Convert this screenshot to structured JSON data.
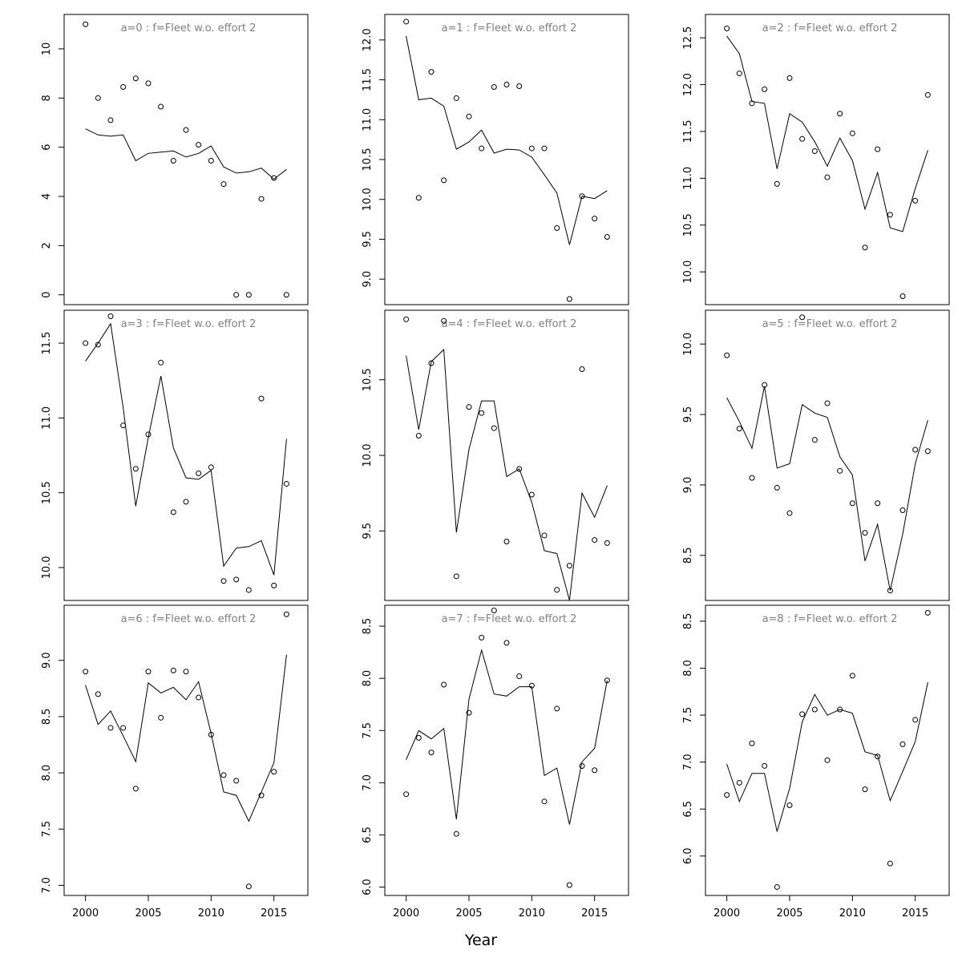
{
  "figure": {
    "xlabel": "Year",
    "colors": {
      "axis": "#000000",
      "panel_title": "#808080",
      "line": "#000000",
      "points": "#000000"
    }
  },
  "chart_data": [
    {
      "type": "line",
      "title": "a=0  :  f=Fleet w.o. effort 2",
      "xlabel": "Year",
      "ylabel": "",
      "xlim": [
        1998.3,
        2017.7
      ],
      "ylim": [
        -0.4,
        11.4
      ],
      "xticks": [
        "2000",
        "2005",
        "2010",
        "2015"
      ],
      "yticks": [
        "0",
        "2",
        "4",
        "6",
        "8",
        "10"
      ],
      "series": [
        {
          "style": "points",
          "x": [
            2000,
            2001,
            2002,
            2003,
            2004,
            2005,
            2006,
            2007,
            2008,
            2009,
            2010,
            2011,
            2012,
            2013,
            2014,
            2015,
            2016
          ],
          "values": [
            11.0,
            8.0,
            7.1,
            8.45,
            8.8,
            8.6,
            7.65,
            5.45,
            6.7,
            6.1,
            5.45,
            4.5,
            0.0,
            0.0,
            3.9,
            4.75,
            0.0
          ]
        },
        {
          "style": "line",
          "x": [
            2000,
            2001,
            2002,
            2003,
            2004,
            2005,
            2006,
            2007,
            2008,
            2009,
            2010,
            2011,
            2012,
            2013,
            2014,
            2015,
            2016
          ],
          "values": [
            6.75,
            6.5,
            6.45,
            6.5,
            5.45,
            5.75,
            5.8,
            5.85,
            5.6,
            5.75,
            6.05,
            5.2,
            4.95,
            5.0,
            5.15,
            4.7,
            5.1
          ]
        }
      ]
    },
    {
      "type": "line",
      "title": "a=3  :  f=Fleet w.o. effort 2",
      "xlabel": "Year",
      "ylabel": "",
      "xlim": [
        1998.3,
        2017.7
      ],
      "ylim": [
        9.78,
        11.72
      ],
      "xticks": [
        "2000",
        "2005",
        "2010",
        "2015"
      ],
      "yticks": [
        "10.0",
        "10.5",
        "11.0",
        "11.5"
      ],
      "series": [
        {
          "style": "points",
          "x": [
            2000,
            2001,
            2002,
            2003,
            2004,
            2005,
            2006,
            2007,
            2008,
            2009,
            2010,
            2011,
            2012,
            2013,
            2014,
            2015,
            2016
          ],
          "values": [
            11.5,
            11.49,
            11.68,
            10.95,
            10.66,
            10.89,
            11.37,
            10.37,
            10.44,
            10.63,
            10.67,
            9.91,
            9.92,
            9.85,
            11.13,
            9.88,
            10.56
          ]
        },
        {
          "style": "line",
          "x": [
            2000,
            2001,
            2002,
            2003,
            2004,
            2005,
            2006,
            2007,
            2008,
            2009,
            2010,
            2011,
            2012,
            2013,
            2014,
            2015,
            2016
          ],
          "values": [
            11.38,
            11.5,
            11.63,
            11.07,
            10.41,
            10.87,
            11.28,
            10.8,
            10.6,
            10.59,
            10.65,
            10.01,
            10.13,
            10.14,
            10.18,
            9.95,
            10.86
          ]
        }
      ]
    },
    {
      "type": "line",
      "title": "a=6  :  f=Fleet w.o. effort 2",
      "xlabel": "Year",
      "ylabel": "",
      "xlim": [
        1998.3,
        2017.7
      ],
      "ylim": [
        6.91,
        9.49
      ],
      "xticks": [
        "2000",
        "2005",
        "2010",
        "2015"
      ],
      "yticks": [
        "7.0",
        "7.5",
        "8.0",
        "8.5",
        "9.0"
      ],
      "series": [
        {
          "style": "points",
          "x": [
            2000,
            2001,
            2002,
            2003,
            2004,
            2005,
            2006,
            2007,
            2008,
            2009,
            2010,
            2011,
            2012,
            2013,
            2014,
            2015,
            2016
          ],
          "values": [
            8.9,
            8.7,
            8.4,
            8.4,
            7.86,
            8.9,
            8.49,
            8.91,
            8.9,
            8.67,
            8.34,
            7.98,
            7.93,
            6.99,
            7.8,
            8.01,
            9.41
          ]
        },
        {
          "style": "line",
          "x": [
            2000,
            2001,
            2002,
            2003,
            2004,
            2005,
            2006,
            2007,
            2008,
            2009,
            2010,
            2011,
            2012,
            2013,
            2014,
            2015,
            2016
          ],
          "values": [
            8.78,
            8.43,
            8.55,
            8.33,
            8.1,
            8.8,
            8.71,
            8.76,
            8.65,
            8.81,
            8.35,
            7.83,
            7.8,
            7.57,
            7.83,
            8.09,
            9.05
          ]
        }
      ]
    },
    {
      "type": "line",
      "title": "a=1  :  f=Fleet w.o. effort 2",
      "xlabel": "Year",
      "ylabel": "",
      "xlim": [
        1998.3,
        2017.7
      ],
      "ylim": [
        8.68,
        12.32
      ],
      "xticks": [
        "2000",
        "2005",
        "2010",
        "2015"
      ],
      "yticks": [
        "9.0",
        "9.5",
        "10.0",
        "10.5",
        "11.0",
        "11.5",
        "12.0"
      ],
      "series": [
        {
          "style": "points",
          "x": [
            2000,
            2001,
            2002,
            2003,
            2004,
            2005,
            2006,
            2007,
            2008,
            2009,
            2010,
            2011,
            2012,
            2013,
            2014,
            2015,
            2016
          ],
          "values": [
            12.23,
            10.02,
            11.6,
            10.24,
            11.27,
            11.04,
            10.64,
            11.41,
            11.44,
            11.42,
            10.64,
            10.64,
            9.64,
            8.75,
            10.04,
            9.76,
            9.53
          ]
        },
        {
          "style": "line",
          "x": [
            2000,
            2001,
            2002,
            2003,
            2004,
            2005,
            2006,
            2007,
            2008,
            2009,
            2010,
            2011,
            2012,
            2013,
            2014,
            2015,
            2016
          ],
          "values": [
            12.05,
            11.25,
            11.27,
            11.17,
            10.63,
            10.72,
            10.87,
            10.58,
            10.63,
            10.62,
            10.53,
            10.31,
            10.08,
            9.43,
            10.04,
            10.01,
            10.11
          ]
        }
      ]
    },
    {
      "type": "line",
      "title": "a=4  :  f=Fleet w.o. effort 2",
      "xlabel": "Year",
      "ylabel": "",
      "xlim": [
        1998.3,
        2017.7
      ],
      "ylim": [
        9.04,
        10.96
      ],
      "xticks": [
        "2000",
        "2005",
        "2010",
        "2015"
      ],
      "yticks": [
        "9.5",
        "10.0",
        "10.5"
      ],
      "series": [
        {
          "style": "points",
          "x": [
            2000,
            2001,
            2002,
            2003,
            2004,
            2005,
            2006,
            2007,
            2008,
            2009,
            2010,
            2011,
            2012,
            2013,
            2014,
            2015,
            2016
          ],
          "values": [
            10.9,
            10.13,
            10.61,
            10.89,
            9.2,
            10.32,
            10.28,
            10.18,
            9.43,
            9.91,
            9.74,
            9.47,
            9.11,
            9.27,
            10.57,
            9.44,
            9.42
          ]
        },
        {
          "style": "line",
          "x": [
            2000,
            2001,
            2002,
            2003,
            2004,
            2005,
            2006,
            2007,
            2008,
            2009,
            2010,
            2011,
            2012,
            2013,
            2014,
            2015,
            2016
          ],
          "values": [
            10.66,
            10.17,
            10.62,
            10.7,
            9.49,
            10.04,
            10.36,
            10.36,
            9.86,
            9.91,
            9.69,
            9.37,
            9.35,
            9.04,
            9.75,
            9.59,
            9.8
          ]
        }
      ]
    },
    {
      "type": "line",
      "title": "a=7  :  f=Fleet w.o. effort 2",
      "xlabel": "Year",
      "ylabel": "",
      "xlim": [
        1998.3,
        2017.7
      ],
      "ylim": [
        5.92,
        8.7
      ],
      "xticks": [
        "2000",
        "2005",
        "2010",
        "2015"
      ],
      "yticks": [
        "6.0",
        "6.5",
        "7.0",
        "7.5",
        "8.0",
        "8.5"
      ],
      "series": [
        {
          "style": "points",
          "x": [
            2000,
            2001,
            2002,
            2003,
            2004,
            2005,
            2006,
            2007,
            2008,
            2009,
            2010,
            2011,
            2012,
            2013,
            2014,
            2015,
            2016
          ],
          "values": [
            6.89,
            7.43,
            7.29,
            7.94,
            6.51,
            7.67,
            8.39,
            8.65,
            8.34,
            8.02,
            7.93,
            6.82,
            7.71,
            6.02,
            7.16,
            7.12,
            7.98
          ]
        },
        {
          "style": "line",
          "x": [
            2000,
            2001,
            2002,
            2003,
            2004,
            2005,
            2006,
            2007,
            2008,
            2009,
            2010,
            2011,
            2012,
            2013,
            2014,
            2015,
            2016
          ],
          "values": [
            7.22,
            7.5,
            7.42,
            7.52,
            6.65,
            7.8,
            8.27,
            7.85,
            7.83,
            7.92,
            7.92,
            7.07,
            7.14,
            6.6,
            7.2,
            7.33,
            7.98
          ]
        }
      ]
    },
    {
      "type": "line",
      "title": "a=2  :  f=Fleet w.o. effort 2",
      "xlabel": "Year",
      "ylabel": "",
      "xlim": [
        1998.3,
        2017.7
      ],
      "ylim": [
        9.65,
        12.75
      ],
      "xticks": [
        "2000",
        "2005",
        "2010",
        "2015"
      ],
      "yticks": [
        "10.0",
        "10.5",
        "11.0",
        "11.5",
        "12.0",
        "12.5"
      ],
      "series": [
        {
          "style": "points",
          "x": [
            2000,
            2001,
            2002,
            2003,
            2004,
            2005,
            2006,
            2007,
            2008,
            2009,
            2010,
            2011,
            2012,
            2013,
            2014,
            2015,
            2016
          ],
          "values": [
            12.6,
            12.12,
            11.8,
            11.95,
            10.94,
            12.07,
            11.42,
            11.29,
            11.01,
            11.69,
            11.48,
            10.26,
            11.31,
            10.61,
            9.74,
            10.76,
            11.89
          ]
        },
        {
          "style": "line",
          "x": [
            2000,
            2001,
            2002,
            2003,
            2004,
            2005,
            2006,
            2007,
            2008,
            2009,
            2010,
            2011,
            2012,
            2013,
            2014,
            2015,
            2016
          ],
          "values": [
            12.52,
            12.33,
            11.82,
            11.8,
            11.1,
            11.69,
            11.6,
            11.39,
            11.13,
            11.43,
            11.19,
            10.67,
            11.06,
            10.47,
            10.43,
            10.89,
            11.3
          ]
        }
      ]
    },
    {
      "type": "line",
      "title": "a=5  :  f=Fleet w.o. effort 2",
      "xlabel": "Year",
      "ylabel": "",
      "xlim": [
        1998.3,
        2017.7
      ],
      "ylim": [
        8.18,
        10.24
      ],
      "xticks": [
        "2000",
        "2005",
        "2010",
        "2015"
      ],
      "yticks": [
        "8.5",
        "9.0",
        "9.5",
        "10.0"
      ],
      "series": [
        {
          "style": "points",
          "x": [
            2000,
            2001,
            2002,
            2003,
            2004,
            2005,
            2006,
            2007,
            2008,
            2009,
            2010,
            2011,
            2012,
            2013,
            2014,
            2015,
            2016
          ],
          "values": [
            9.92,
            9.4,
            9.05,
            9.71,
            8.98,
            8.8,
            10.19,
            9.32,
            9.58,
            9.1,
            8.87,
            8.66,
            8.87,
            8.25,
            8.82,
            9.25,
            9.24
          ]
        },
        {
          "style": "line",
          "x": [
            2000,
            2001,
            2002,
            2003,
            2004,
            2005,
            2006,
            2007,
            2008,
            2009,
            2010,
            2011,
            2012,
            2013,
            2014,
            2015,
            2016
          ],
          "values": [
            9.62,
            9.45,
            9.26,
            9.7,
            9.12,
            9.15,
            9.57,
            9.51,
            9.48,
            9.2,
            9.07,
            8.46,
            8.72,
            8.25,
            8.65,
            9.15,
            9.46
          ]
        }
      ]
    },
    {
      "type": "line",
      "title": "a=8  :  f=Fleet w.o. effort 2",
      "xlabel": "Year",
      "ylabel": "",
      "xlim": [
        1998.3,
        2017.7
      ],
      "ylim": [
        5.58,
        8.67
      ],
      "xticks": [
        "2000",
        "2005",
        "2010",
        "2015"
      ],
      "yticks": [
        "6.0",
        "6.5",
        "7.0",
        "7.5",
        "8.0",
        "8.5"
      ],
      "series": [
        {
          "style": "points",
          "x": [
            2000,
            2001,
            2002,
            2003,
            2004,
            2005,
            2006,
            2007,
            2008,
            2009,
            2010,
            2011,
            2012,
            2013,
            2014,
            2015,
            2016
          ],
          "values": [
            6.65,
            6.78,
            7.2,
            6.96,
            5.67,
            6.54,
            7.51,
            7.56,
            7.02,
            7.56,
            7.92,
            6.71,
            7.06,
            5.92,
            7.19,
            7.45,
            8.59
          ]
        },
        {
          "style": "line",
          "x": [
            2000,
            2001,
            2002,
            2003,
            2004,
            2005,
            2006,
            2007,
            2008,
            2009,
            2010,
            2011,
            2012,
            2013,
            2014,
            2015,
            2016
          ],
          "values": [
            6.98,
            6.58,
            6.88,
            6.88,
            6.26,
            6.72,
            7.43,
            7.72,
            7.5,
            7.56,
            7.52,
            7.11,
            7.07,
            6.59,
            6.9,
            7.22,
            7.85
          ]
        }
      ]
    }
  ]
}
